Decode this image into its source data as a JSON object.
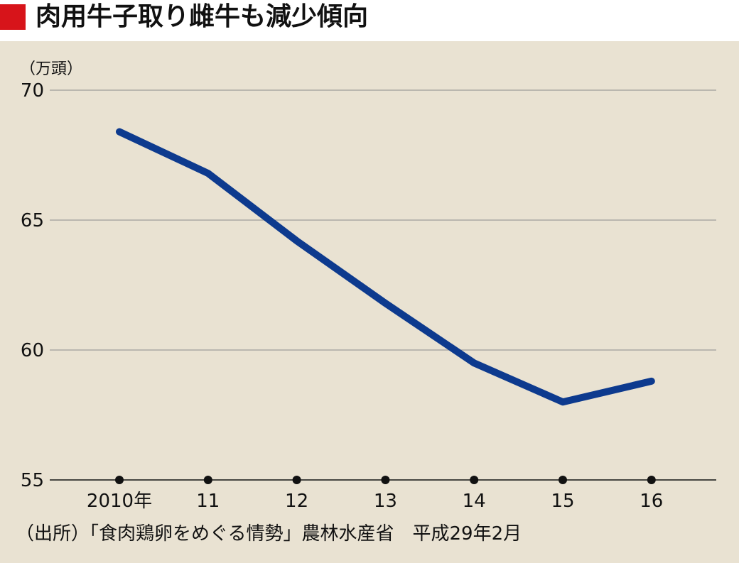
{
  "title": "肉用牛子取り雌牛も減少傾向",
  "source": "（出所）「食肉鶏卵をめぐる情勢」農林水産省　平成29年2月",
  "colors": {
    "accent": "#d7141a",
    "line": "#0d3a8e",
    "background": "#e9e2d2",
    "grid": "#8c8c8c"
  },
  "chart_data": {
    "type": "line",
    "unit_label": "（万頭）",
    "categories": [
      "2010年",
      "11",
      "12",
      "13",
      "14",
      "15",
      "16"
    ],
    "series": [
      {
        "values": [
          68.4,
          66.8,
          64.2,
          61.8,
          59.5,
          58.0,
          58.8
        ]
      }
    ],
    "ylim": [
      55,
      70
    ],
    "yticks": [
      55,
      60,
      65,
      70
    ],
    "grid": true
  }
}
